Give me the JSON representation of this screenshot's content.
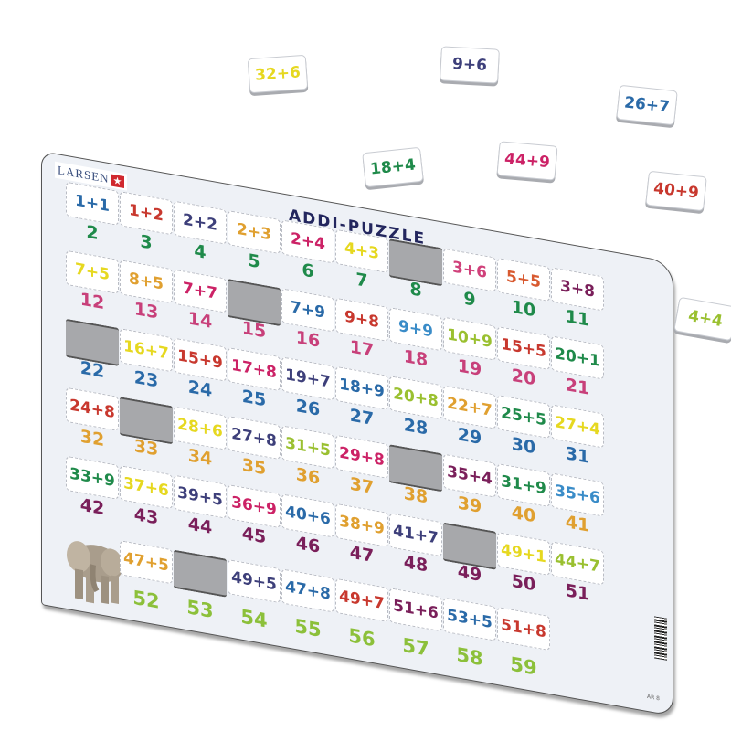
{
  "brand": {
    "logo": "LARSEN",
    "logo_mark": "★",
    "code": "AR 8"
  },
  "title": "ADDI-PUZZLE",
  "rows": [
    {
      "answer_color": "#1f8a4a",
      "cells": [
        {
          "problem": "1+1",
          "color": "#2a6aa8",
          "answer": "2"
        },
        {
          "problem": "1+2",
          "color": "#c8382e",
          "answer": "3"
        },
        {
          "problem": "2+2",
          "color": "#3d3f7a",
          "answer": "4"
        },
        {
          "problem": "2+3",
          "color": "#e0a030",
          "answer": "5"
        },
        {
          "problem": "2+4",
          "color": "#cc2266",
          "answer": "6"
        },
        {
          "problem": "4+3",
          "color": "#e6d820",
          "answer": "7"
        },
        {
          "problem": null,
          "answer": "8"
        },
        {
          "problem": "3+6",
          "color": "#d0407a",
          "answer": "9"
        },
        {
          "problem": "5+5",
          "color": "#d85a30",
          "answer": "10"
        },
        {
          "problem": "3+8",
          "color": "#7a1f5a",
          "answer": "11"
        }
      ]
    },
    {
      "answer_color": "#c8407a",
      "cells": [
        {
          "problem": "7+5",
          "color": "#e6d820",
          "answer": "12"
        },
        {
          "problem": "8+5",
          "color": "#e0a030",
          "answer": "13"
        },
        {
          "problem": "7+7",
          "color": "#cc2266",
          "answer": "14"
        },
        {
          "problem": null,
          "answer": "15"
        },
        {
          "problem": "7+9",
          "color": "#2a6aa8",
          "answer": "16"
        },
        {
          "problem": "9+8",
          "color": "#c8382e",
          "answer": "17"
        },
        {
          "problem": "9+9",
          "color": "#3a8cc8",
          "answer": "18"
        },
        {
          "problem": "10+9",
          "color": "#9ac030",
          "answer": "19"
        },
        {
          "problem": "15+5",
          "color": "#c8382e",
          "answer": "20"
        },
        {
          "problem": "20+1",
          "color": "#1f8a4a",
          "answer": "21"
        }
      ]
    },
    {
      "answer_color": "#2a6aa8",
      "cells": [
        {
          "problem": null,
          "answer": "22"
        },
        {
          "problem": "16+7",
          "color": "#e6d820",
          "answer": "23"
        },
        {
          "problem": "15+9",
          "color": "#c8382e",
          "answer": "24"
        },
        {
          "problem": "17+8",
          "color": "#cc2266",
          "answer": "25"
        },
        {
          "problem": "19+7",
          "color": "#3d3f7a",
          "answer": "26"
        },
        {
          "problem": "18+9",
          "color": "#2a6aa8",
          "answer": "27"
        },
        {
          "problem": "20+8",
          "color": "#9ac030",
          "answer": "28"
        },
        {
          "problem": "22+7",
          "color": "#e0a030",
          "answer": "29"
        },
        {
          "problem": "25+5",
          "color": "#1f8a4a",
          "answer": "30"
        },
        {
          "problem": "27+4",
          "color": "#e6d820",
          "answer": "31"
        }
      ]
    },
    {
      "answer_color": "#e0a030",
      "cells": [
        {
          "problem": "24+8",
          "color": "#c8382e",
          "answer": "32"
        },
        {
          "problem": null,
          "answer": "33"
        },
        {
          "problem": "28+6",
          "color": "#e6d820",
          "answer": "34"
        },
        {
          "problem": "27+8",
          "color": "#3d3f7a",
          "answer": "35"
        },
        {
          "problem": "31+5",
          "color": "#9ac030",
          "answer": "36"
        },
        {
          "problem": "29+8",
          "color": "#cc2266",
          "answer": "37"
        },
        {
          "problem": null,
          "answer": "38"
        },
        {
          "problem": "35+4",
          "color": "#7a1f5a",
          "answer": "39"
        },
        {
          "problem": "31+9",
          "color": "#1f8a4a",
          "answer": "40"
        },
        {
          "problem": "35+6",
          "color": "#3a8cc8",
          "answer": "41"
        }
      ]
    },
    {
      "answer_color": "#7a1f5a",
      "cells": [
        {
          "problem": "33+9",
          "color": "#1f8a4a",
          "answer": "42"
        },
        {
          "problem": "37+6",
          "color": "#e6d820",
          "answer": "43"
        },
        {
          "problem": "39+5",
          "color": "#3d3f7a",
          "answer": "44"
        },
        {
          "problem": "36+9",
          "color": "#cc2266",
          "answer": "45"
        },
        {
          "problem": "40+6",
          "color": "#2a6aa8",
          "answer": "46"
        },
        {
          "problem": "38+9",
          "color": "#e0a030",
          "answer": "47"
        },
        {
          "problem": "41+7",
          "color": "#3d3f7a",
          "answer": "48"
        },
        {
          "problem": null,
          "answer": "49"
        },
        {
          "problem": "49+1",
          "color": "#e6d820",
          "answer": "50"
        },
        {
          "problem": "44+7",
          "color": "#9ac030",
          "answer": "51"
        }
      ]
    },
    {
      "answer_color": "#8cc03a",
      "cells": [
        {
          "elephant": true
        },
        {
          "problem": "47+5",
          "color": "#e0a030",
          "answer": "52"
        },
        {
          "problem": null,
          "answer": "53"
        },
        {
          "problem": "49+5",
          "color": "#3d3f7a",
          "answer": "54"
        },
        {
          "problem": "47+8",
          "color": "#2a6aa8",
          "answer": "55"
        },
        {
          "problem": "49+7",
          "color": "#c8382e",
          "answer": "56"
        },
        {
          "problem": "51+6",
          "color": "#7a1f5a",
          "answer": "57"
        },
        {
          "problem": "53+5",
          "color": "#2a6aa8",
          "answer": "58"
        },
        {
          "problem": "51+8",
          "color": "#c8382e",
          "answer": "59"
        }
      ]
    }
  ],
  "loose_pieces": [
    {
      "problem": "32+6",
      "color": "#e6d820"
    },
    {
      "problem": "9+6",
      "color": "#3d3f7a"
    },
    {
      "problem": "26+7",
      "color": "#2a6aa8"
    },
    {
      "problem": "18+4",
      "color": "#1f8a4a"
    },
    {
      "problem": "44+9",
      "color": "#cc2266"
    },
    {
      "problem": "40+9",
      "color": "#c8382e"
    },
    {
      "problem": "4+4",
      "color": "#9ac030"
    }
  ]
}
